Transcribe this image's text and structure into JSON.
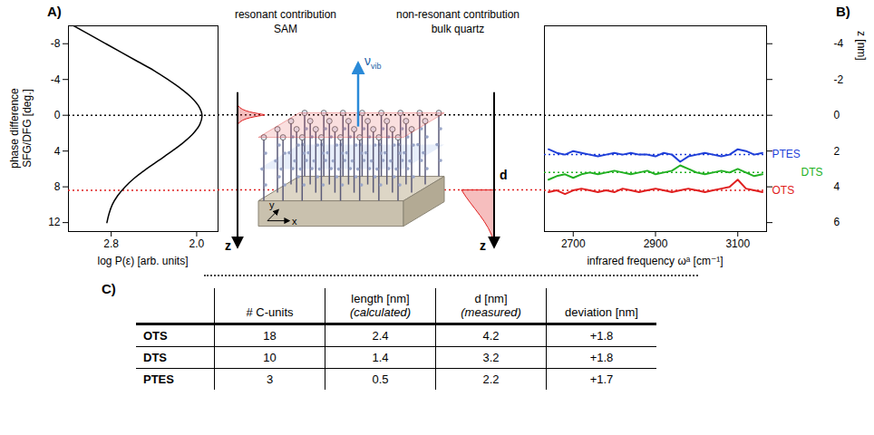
{
  "chart_data": [
    {
      "panel": "A)",
      "type": "line",
      "x_label": "log P(ε) [arb. units]",
      "y_label": "phase difference\nSFG/DFG [deg.]",
      "xlim": [
        3.2,
        1.8
      ],
      "xticks": [
        2.8,
        {
          "value": 2,
          "label": "2.0"
        }
      ],
      "ylim": [
        13,
        -10
      ],
      "yticks": [
        -8,
        -4,
        0,
        4,
        8,
        12
      ],
      "rules": [
        {
          "value": 0,
          "color": "#000000"
        },
        {
          "value": 8.4,
          "color": "#e02020"
        }
      ],
      "series": [
        {
          "color": "#000000",
          "x": [
            3.15,
            3.0,
            2.85,
            2.7,
            2.55,
            2.4,
            2.27,
            2.15,
            2.05,
            1.98,
            1.95,
            1.97,
            2.03,
            2.12,
            2.23,
            2.35,
            2.47,
            2.58,
            2.67,
            2.74,
            2.79,
            2.82,
            2.84
          ],
          "y": [
            -10,
            -9,
            -8,
            -7,
            -6,
            -5,
            -4,
            -3,
            -2,
            -1,
            0,
            1,
            2,
            3,
            4,
            5,
            6,
            7,
            8,
            9,
            10,
            11,
            12
          ]
        }
      ]
    },
    {
      "panel": "B)",
      "type": "line",
      "x_label": "infrared frequency ωᵃ [cm⁻¹]",
      "y_label": "z [nm]",
      "x": [
        2640,
        2660,
        2680,
        2700,
        2720,
        2740,
        2760,
        2780,
        2800,
        2820,
        2840,
        2860,
        2880,
        2900,
        2920,
        2940,
        2960,
        2980,
        3000,
        3020,
        3040,
        3060,
        3080,
        3100,
        3120,
        3140,
        3160
      ],
      "xlim": [
        2630,
        3170
      ],
      "xticks": [
        2700,
        2900,
        3100
      ],
      "ylim": [
        6.5,
        -5
      ],
      "yticks": [
        -4,
        -2,
        0,
        2,
        4,
        6
      ],
      "rules": [
        {
          "value": 0,
          "color": "#000000"
        }
      ],
      "series": [
        {
          "name": "PTES",
          "color": "#1f3fd8",
          "d": 2.2,
          "values": [
            1.9,
            2.1,
            2.2,
            2.0,
            2.1,
            2.2,
            2.3,
            2.2,
            2.1,
            2.2,
            2.1,
            2.2,
            2.2,
            2.3,
            2.1,
            2.2,
            2.6,
            2.3,
            2.2,
            2.1,
            2.2,
            2.3,
            2.2,
            1.9,
            2.0,
            2.2,
            2.1
          ]
        },
        {
          "name": "DTS",
          "color": "#22b022",
          "d": 3.2,
          "values": [
            3.6,
            3.4,
            3.3,
            3.5,
            3.3,
            3.2,
            3.3,
            3.2,
            3.1,
            3.2,
            3.3,
            3.2,
            3.1,
            3.3,
            3.2,
            3.1,
            2.8,
            3.0,
            3.2,
            3.3,
            3.2,
            3.1,
            3.2,
            3.0,
            3.2,
            3.4,
            3.3
          ]
        },
        {
          "name": "OTS",
          "color": "#e02020",
          "d": 4.2,
          "values": [
            4.3,
            4.2,
            4.4,
            4.2,
            4.1,
            4.2,
            4.3,
            4.2,
            4.3,
            4.1,
            4.2,
            4.3,
            4.2,
            4.1,
            4.2,
            4.3,
            4.2,
            4.1,
            4.2,
            4.3,
            4.2,
            4.1,
            4.0,
            3.6,
            4.1,
            4.2,
            4.3
          ]
        }
      ]
    }
  ],
  "diagram": {
    "resonant": {
      "title": "resonant contribution",
      "subtitle": "SAM"
    },
    "nonresonant": {
      "title": "non-resonant contribution",
      "subtitle": "bulk quartz"
    },
    "axis_z": "z",
    "depth": "d",
    "vibration": {
      "symbol": "ν",
      "subscript": "vib"
    },
    "x_axis": "x",
    "y_axis": "y"
  },
  "table": {
    "panel": "C)",
    "columns": [
      "# C-units",
      "length [nm]\n(calculated)",
      "d [nm]\n(measured)",
      "deviation [nm]"
    ],
    "rows": [
      {
        "label": "OTS",
        "cells": [
          18,
          2.4,
          4.2,
          "+1.8"
        ]
      },
      {
        "label": "DTS",
        "cells": [
          10,
          1.4,
          3.2,
          "+1.8"
        ]
      },
      {
        "label": "PTES",
        "cells": [
          3,
          0.5,
          2.2,
          "+1.7"
        ]
      }
    ]
  }
}
